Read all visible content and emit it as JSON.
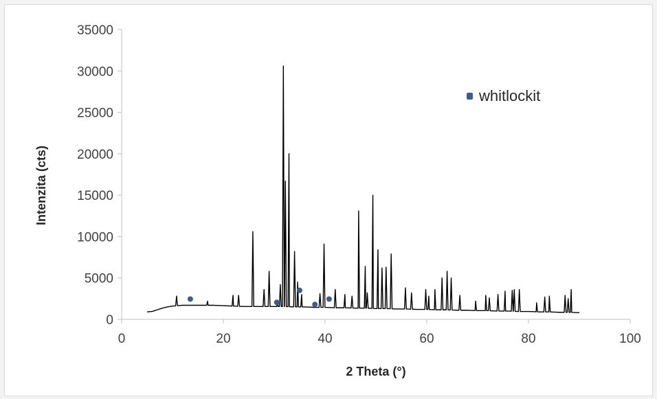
{
  "chart_data": {
    "type": "line",
    "title": "",
    "xlabel": "2 Theta (°)",
    "ylabel": "Intenzita (cts)",
    "xlim": [
      0,
      100
    ],
    "ylim": [
      0,
      35000
    ],
    "x_ticks": [
      0,
      20,
      40,
      60,
      80,
      100
    ],
    "y_ticks": [
      0,
      5000,
      10000,
      15000,
      20000,
      25000,
      30000,
      35000
    ],
    "grid": false,
    "legend_position": "top-right",
    "series": [
      {
        "kind": "line",
        "color": "#000000",
        "baseline": [
          [
            5,
            900
          ],
          [
            6,
            950
          ],
          [
            7,
            1150
          ],
          [
            8,
            1350
          ],
          [
            9,
            1500
          ],
          [
            10,
            1600
          ],
          [
            11,
            1650
          ],
          [
            12,
            1700
          ],
          [
            14,
            1700
          ],
          [
            16,
            1700
          ],
          [
            18,
            1700
          ],
          [
            20,
            1650
          ],
          [
            22,
            1600
          ],
          [
            24,
            1550
          ],
          [
            26,
            1550
          ],
          [
            28,
            1550
          ],
          [
            30,
            1550
          ],
          [
            32,
            1550
          ],
          [
            34,
            1500
          ],
          [
            36,
            1500
          ],
          [
            38,
            1450
          ],
          [
            40,
            1450
          ],
          [
            42,
            1400
          ],
          [
            44,
            1400
          ],
          [
            46,
            1350
          ],
          [
            48,
            1350
          ],
          [
            50,
            1300
          ],
          [
            52,
            1300
          ],
          [
            54,
            1250
          ],
          [
            56,
            1250
          ],
          [
            58,
            1200
          ],
          [
            60,
            1200
          ],
          [
            62,
            1150
          ],
          [
            64,
            1150
          ],
          [
            66,
            1100
          ],
          [
            68,
            1100
          ],
          [
            70,
            1050
          ],
          [
            72,
            1050
          ],
          [
            74,
            1000
          ],
          [
            76,
            1000
          ],
          [
            78,
            950
          ],
          [
            80,
            950
          ],
          [
            82,
            900
          ],
          [
            84,
            900
          ],
          [
            86,
            850
          ],
          [
            88,
            850
          ],
          [
            90,
            800
          ]
        ],
        "peaks": [
          [
            10.8,
            2800
          ],
          [
            16.9,
            2200
          ],
          [
            21.9,
            2900
          ],
          [
            23.0,
            2900
          ],
          [
            25.8,
            10600
          ],
          [
            28.0,
            3600
          ],
          [
            29.0,
            5800
          ],
          [
            30.6,
            2200
          ],
          [
            31.2,
            4200
          ],
          [
            31.8,
            30600
          ],
          [
            32.2,
            16700
          ],
          [
            32.9,
            20000
          ],
          [
            34.0,
            8200
          ],
          [
            34.6,
            4500
          ],
          [
            35.4,
            3000
          ],
          [
            39.0,
            3100
          ],
          [
            39.8,
            9100
          ],
          [
            42.0,
            3600
          ],
          [
            43.9,
            3000
          ],
          [
            45.3,
            2800
          ],
          [
            46.6,
            13100
          ],
          [
            47.9,
            6400
          ],
          [
            48.3,
            3200
          ],
          [
            49.4,
            15000
          ],
          [
            50.4,
            8400
          ],
          [
            51.2,
            6200
          ],
          [
            52.0,
            6300
          ],
          [
            53.0,
            7900
          ],
          [
            55.8,
            3800
          ],
          [
            57.0,
            3200
          ],
          [
            59.8,
            3600
          ],
          [
            60.4,
            2800
          ],
          [
            61.6,
            3600
          ],
          [
            63.0,
            5000
          ],
          [
            64.0,
            5800
          ],
          [
            64.8,
            5000
          ],
          [
            66.5,
            2900
          ],
          [
            69.6,
            2200
          ],
          [
            71.6,
            2900
          ],
          [
            72.3,
            2600
          ],
          [
            74.0,
            3000
          ],
          [
            75.4,
            3400
          ],
          [
            76.8,
            3500
          ],
          [
            77.2,
            3600
          ],
          [
            78.2,
            3600
          ],
          [
            81.6,
            2000
          ],
          [
            83.2,
            2700
          ],
          [
            84.1,
            2800
          ],
          [
            87.2,
            2900
          ],
          [
            87.8,
            2500
          ],
          [
            88.4,
            3600
          ]
        ]
      },
      {
        "kind": "markers",
        "name": "whitlockit",
        "color": "#3a5f8f",
        "points": [
          [
            13.5,
            2450
          ],
          [
            30.5,
            2050
          ],
          [
            35.0,
            3500
          ],
          [
            38.0,
            1800
          ],
          [
            40.8,
            2450
          ]
        ]
      }
    ]
  }
}
